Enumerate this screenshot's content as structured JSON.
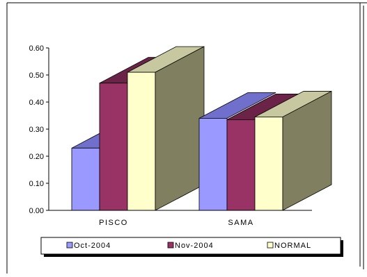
{
  "chart_data": {
    "type": "bar",
    "categories": [
      "PISCO",
      "SAMA"
    ],
    "series": [
      {
        "name": "Oct-2004",
        "values": [
          0.23,
          0.34
        ]
      },
      {
        "name": "Nov-2004",
        "values": [
          0.47,
          0.335
        ]
      },
      {
        "name": "NORMAL",
        "values": [
          0.51,
          0.345
        ]
      }
    ],
    "ylim": [
      0,
      0.6
    ],
    "yticks": [
      "0.00",
      "0.10",
      "0.20",
      "0.30",
      "0.40",
      "0.50",
      "0.60"
    ],
    "grid": false,
    "legend_position": "bottom",
    "style": "3d-clustered-bar"
  },
  "colors": {
    "series_front": [
      "#9999ff",
      "#993366",
      "#ffffcc"
    ],
    "series_top": [
      "#7070cc",
      "#6b2347",
      "#c8c8a0"
    ],
    "series_side": [
      "#808060"
    ],
    "border": "#000000"
  }
}
